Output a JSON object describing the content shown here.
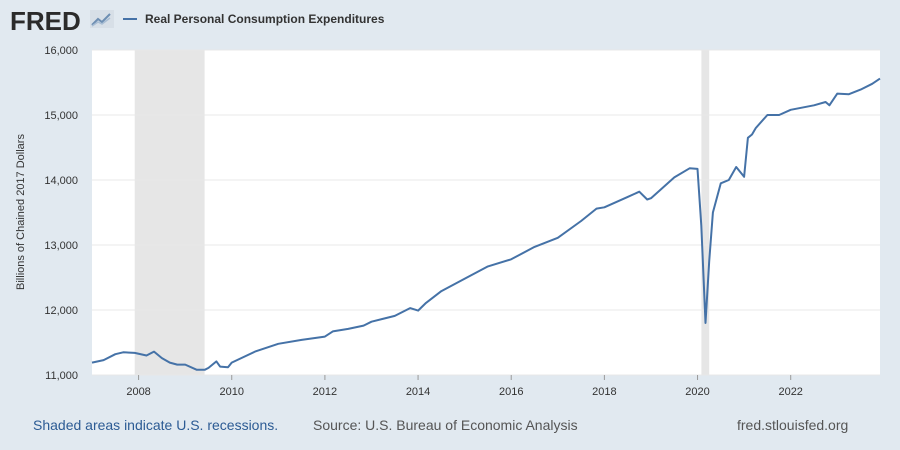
{
  "header": {
    "logo_text": "FRED",
    "logo_icon": "line-chart-icon"
  },
  "colors": {
    "background": "#e1e9f0",
    "plot_background": "#ffffff",
    "series": "#4572a7",
    "recession": "#e6e6e6",
    "note": "#2c5b94"
  },
  "footer": {
    "note": "Shaded areas indicate U.S. recessions.",
    "source": "Source: U.S. Bureau of Economic Analysis",
    "url": "fred.stlouisfed.org"
  },
  "chart_data": {
    "type": "line",
    "title": "",
    "xlabel": "",
    "ylabel": "Billions of Chained 2017 Dollars",
    "xlim": [
      2007.0,
      2023.917
    ],
    "ylim": [
      11000,
      16000
    ],
    "grid": true,
    "legend_position": "top-left",
    "x_ticks": [
      2008,
      2010,
      2012,
      2014,
      2016,
      2018,
      2020,
      2022
    ],
    "y_ticks": [
      11000,
      12000,
      13000,
      14000,
      15000,
      16000
    ],
    "y_tick_labels": [
      "11,000",
      "12,000",
      "13,000",
      "14,000",
      "15,000",
      "16,000"
    ],
    "recessions": [
      [
        2007.917,
        2009.417
      ],
      [
        2020.083,
        2020.25
      ]
    ],
    "series": [
      {
        "name": "Real Personal Consumption Expenditures",
        "x": [
          2007.0,
          2007.25,
          2007.5,
          2007.67,
          2007.917,
          2008.17,
          2008.33,
          2008.5,
          2008.67,
          2008.83,
          2009.0,
          2009.25,
          2009.42,
          2009.5,
          2009.67,
          2009.75,
          2009.92,
          2010.0,
          2010.5,
          2011.0,
          2011.5,
          2012.0,
          2012.17,
          2012.5,
          2012.83,
          2013.0,
          2013.5,
          2013.83,
          2014.0,
          2014.17,
          2014.5,
          2015.0,
          2015.5,
          2016.0,
          2016.5,
          2017.0,
          2017.5,
          2017.83,
          2018.0,
          2018.5,
          2018.75,
          2018.92,
          2019.0,
          2019.5,
          2019.83,
          2020.0,
          2020.08,
          2020.17,
          2020.25,
          2020.33,
          2020.5,
          2020.67,
          2020.83,
          2021.0,
          2021.08,
          2021.17,
          2021.25,
          2021.5,
          2021.75,
          2022.0,
          2022.5,
          2022.75,
          2022.83,
          2023.0,
          2023.25,
          2023.5,
          2023.75,
          2023.917
        ],
        "values": [
          11190,
          11230,
          11320,
          11350,
          11340,
          11300,
          11360,
          11260,
          11190,
          11160,
          11160,
          11080,
          11080,
          11110,
          11210,
          11130,
          11120,
          11190,
          11360,
          11480,
          11540,
          11590,
          11670,
          11710,
          11760,
          11820,
          11910,
          12030,
          11990,
          12110,
          12290,
          12480,
          12670,
          12780,
          12970,
          13110,
          13370,
          13560,
          13580,
          13740,
          13820,
          13700,
          13720,
          14040,
          14180,
          14170,
          13300,
          11800,
          12750,
          13500,
          13950,
          14000,
          14200,
          14050,
          14650,
          14700,
          14800,
          15000,
          15000,
          15080,
          15150,
          15200,
          15150,
          15330,
          15320,
          15390,
          15480,
          15560
        ]
      }
    ]
  }
}
